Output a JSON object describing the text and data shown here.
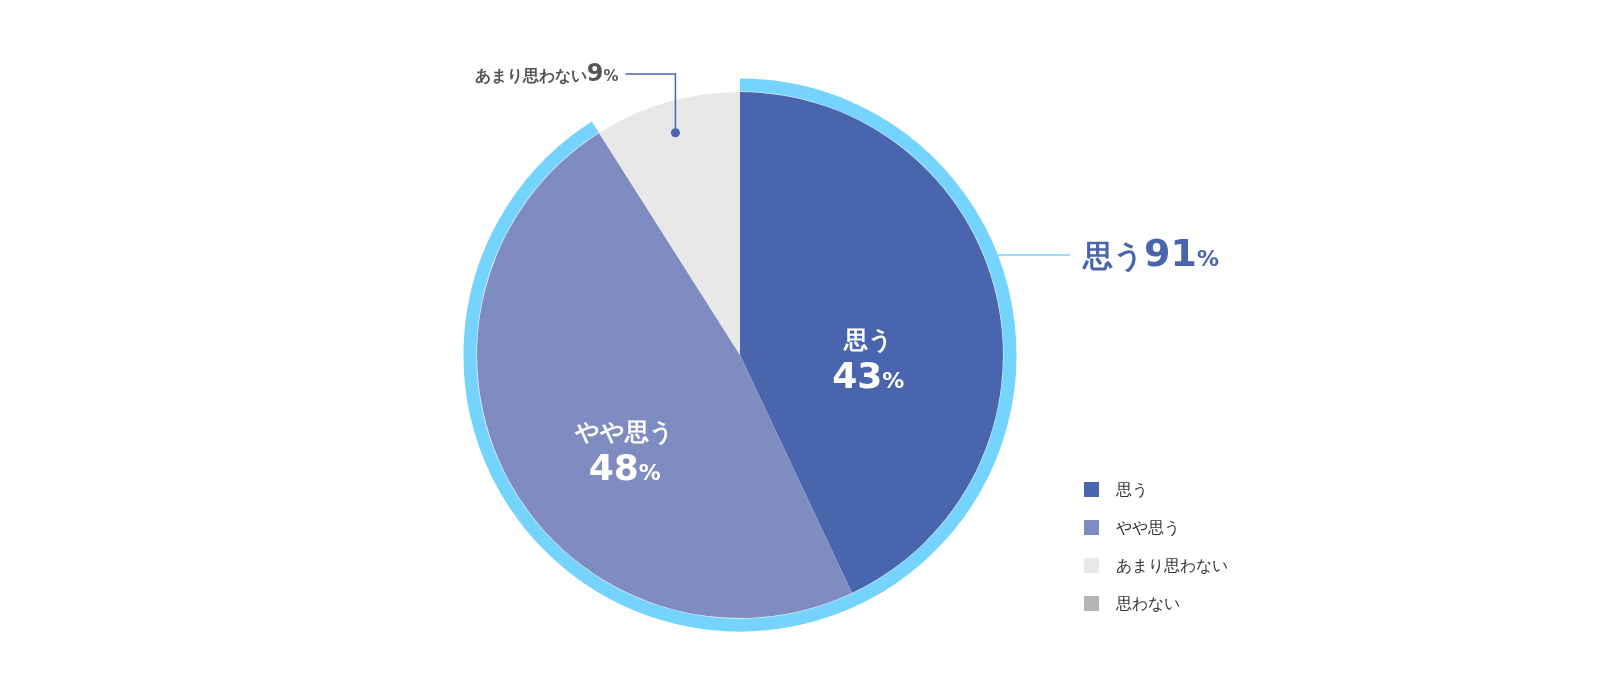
{
  "chart_data": {
    "type": "pie",
    "categories": [
      "思う",
      "やや思う",
      "あまり思わない",
      "思わない"
    ],
    "values": [
      43,
      48,
      9,
      0
    ],
    "colors": [
      "#4865ae",
      "#7f8cc2",
      "#e8e8e8",
      "#b4b4b4"
    ],
    "value_labels": [
      "43%",
      "48%",
      "9%",
      null
    ],
    "legend": "bottom right",
    "annotations": [
      "思う91%"
    ]
  }
}
